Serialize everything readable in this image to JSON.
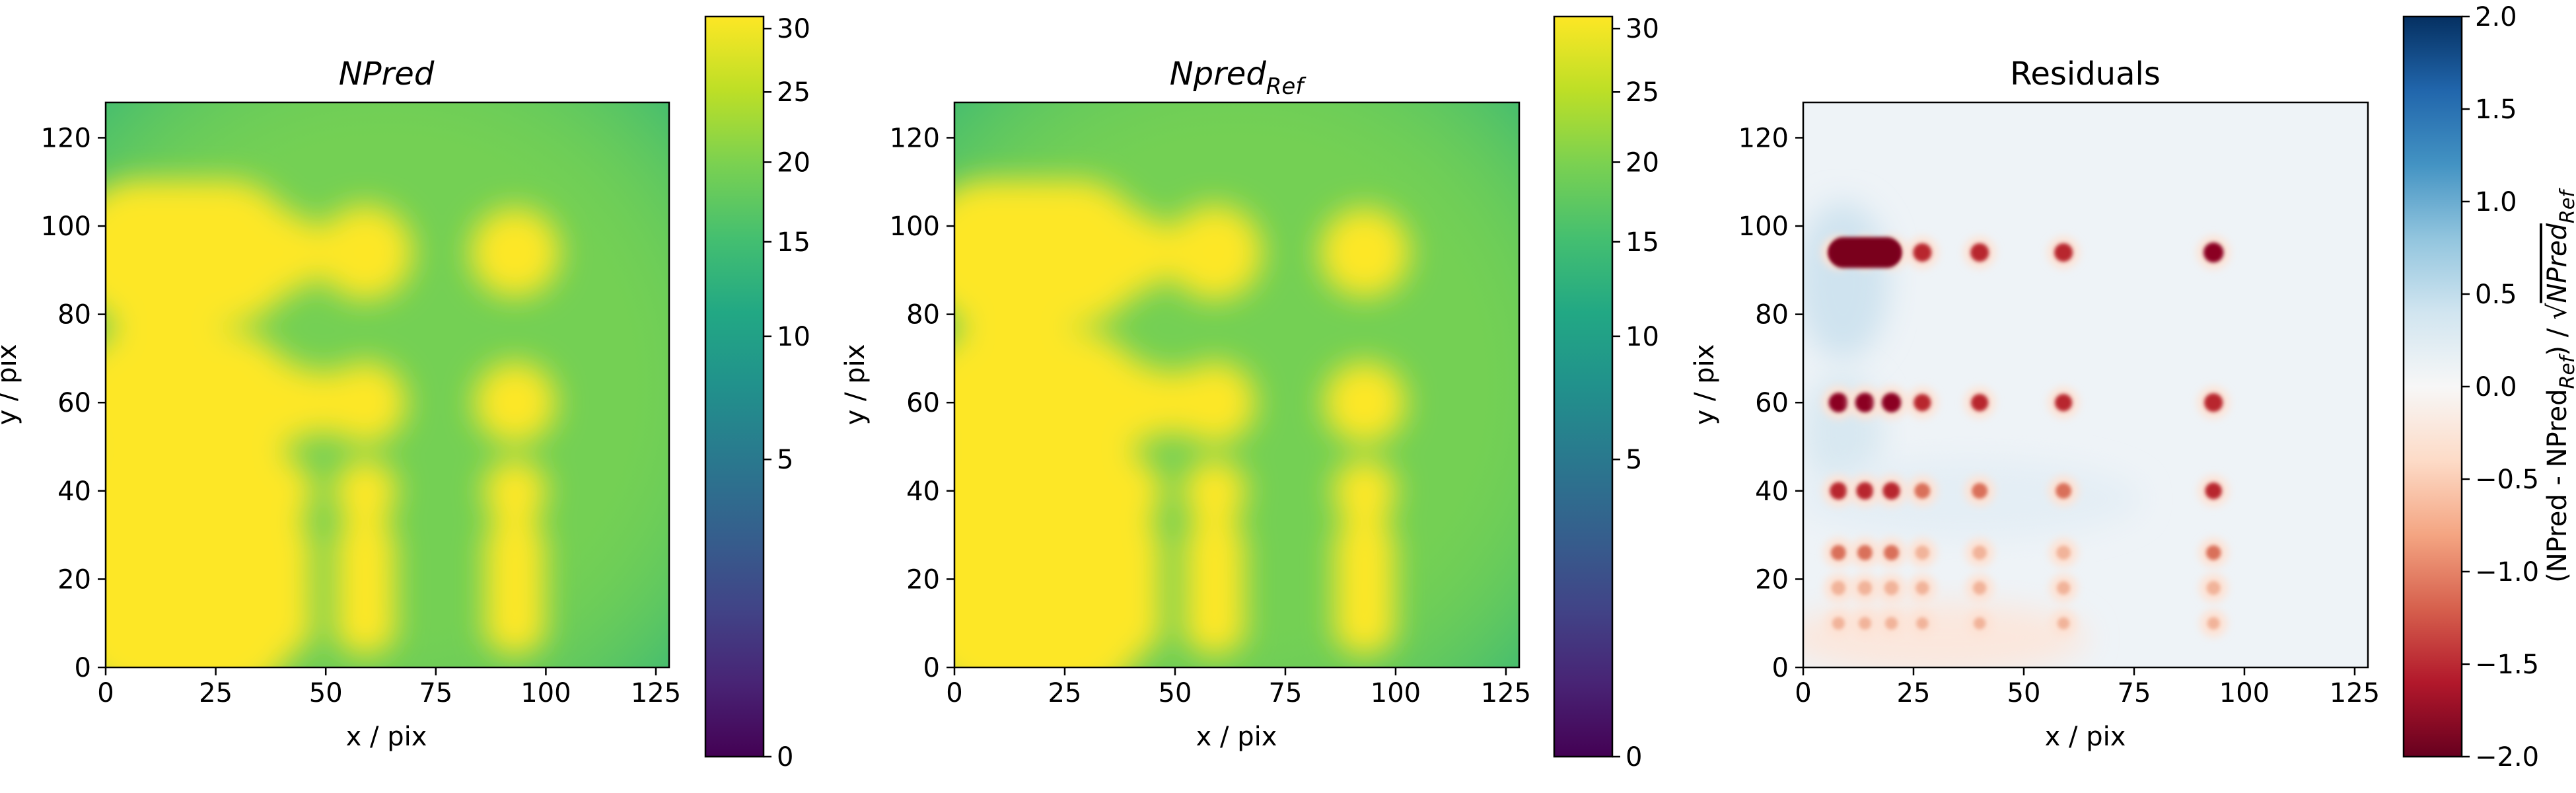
{
  "chart_data": [
    {
      "type": "heatmap",
      "title": "NPred",
      "xlabel": "x / pix",
      "ylabel": "y / pix",
      "xlim": [
        0,
        128
      ],
      "ylim": [
        0,
        128
      ],
      "xticks": [
        0,
        25,
        50,
        75,
        100,
        125
      ],
      "yticks": [
        0,
        20,
        40,
        60,
        80,
        100,
        120
      ],
      "colormap": "viridis",
      "colorbar": {
        "scale": "sqrt",
        "min": 0,
        "max": 31,
        "ticks": [
          0,
          5,
          10,
          15,
          20,
          25,
          30
        ]
      },
      "background_level": 17,
      "sources": [
        {
          "x": 8,
          "y": 94
        },
        {
          "x": 14,
          "y": 94
        },
        {
          "x": 20,
          "y": 94
        },
        {
          "x": 27,
          "y": 94
        },
        {
          "x": 40,
          "y": 94
        },
        {
          "x": 59,
          "y": 94
        },
        {
          "x": 93,
          "y": 94
        },
        {
          "x": 8,
          "y": 60
        },
        {
          "x": 14,
          "y": 60
        },
        {
          "x": 20,
          "y": 60
        },
        {
          "x": 27,
          "y": 60
        },
        {
          "x": 40,
          "y": 60
        },
        {
          "x": 59,
          "y": 60
        },
        {
          "x": 93,
          "y": 60
        },
        {
          "x": 8,
          "y": 40
        },
        {
          "x": 14,
          "y": 40
        },
        {
          "x": 20,
          "y": 40
        },
        {
          "x": 27,
          "y": 40
        },
        {
          "x": 40,
          "y": 40
        },
        {
          "x": 59,
          "y": 40
        },
        {
          "x": 93,
          "y": 40
        },
        {
          "x": 8,
          "y": 26
        },
        {
          "x": 14,
          "y": 26
        },
        {
          "x": 20,
          "y": 26
        },
        {
          "x": 27,
          "y": 26
        },
        {
          "x": 40,
          "y": 26
        },
        {
          "x": 59,
          "y": 26
        },
        {
          "x": 93,
          "y": 26
        },
        {
          "x": 8,
          "y": 18
        },
        {
          "x": 14,
          "y": 18
        },
        {
          "x": 20,
          "y": 18
        },
        {
          "x": 27,
          "y": 18
        },
        {
          "x": 40,
          "y": 18
        },
        {
          "x": 59,
          "y": 18
        },
        {
          "x": 93,
          "y": 18
        },
        {
          "x": 8,
          "y": 10
        },
        {
          "x": 14,
          "y": 10
        },
        {
          "x": 20,
          "y": 10
        },
        {
          "x": 27,
          "y": 10
        },
        {
          "x": 40,
          "y": 10
        },
        {
          "x": 59,
          "y": 10
        },
        {
          "x": 93,
          "y": 10
        }
      ]
    },
    {
      "type": "heatmap",
      "title": "Npred",
      "title_subscript": "Ref",
      "xlabel": "x / pix",
      "ylabel": "y / pix",
      "xlim": [
        0,
        128
      ],
      "ylim": [
        0,
        128
      ],
      "xticks": [
        0,
        25,
        50,
        75,
        100,
        125
      ],
      "yticks": [
        0,
        20,
        40,
        60,
        80,
        100,
        120
      ],
      "colormap": "viridis",
      "colorbar": {
        "scale": "sqrt",
        "min": 0,
        "max": 31,
        "ticks": [
          0,
          5,
          10,
          15,
          20,
          25,
          30
        ]
      },
      "background_level": 17
    },
    {
      "type": "heatmap",
      "title": "Residuals",
      "xlabel": "x / pix",
      "ylabel": "y / pix",
      "xlim": [
        0,
        128
      ],
      "ylim": [
        0,
        128
      ],
      "xticks": [
        0,
        25,
        50,
        75,
        100,
        125
      ],
      "yticks": [
        0,
        20,
        40,
        60,
        80,
        100,
        120
      ],
      "colormap": "RdBu",
      "colorbar": {
        "scale": "linear",
        "min": -2.0,
        "max": 2.0,
        "ticks": [
          "2.0",
          "1.5",
          "1.0",
          "0.5",
          "0.0",
          "−0.5",
          "−1.0",
          "−1.5",
          "−2.0"
        ],
        "label": "(NPred - NPred",
        "label_sub": "Ref",
        "label_mid": ") / √",
        "label_root": "NPred",
        "label_root_sub": "Ref"
      },
      "residual_rows": [
        {
          "y": 94,
          "strength": 1.0
        },
        {
          "y": 60,
          "strength": 0.85
        },
        {
          "y": 40,
          "strength": 0.65
        },
        {
          "y": 26,
          "strength": 0.45
        },
        {
          "y": 18,
          "strength": 0.35
        },
        {
          "y": 10,
          "strength": 0.2
        }
      ]
    }
  ]
}
